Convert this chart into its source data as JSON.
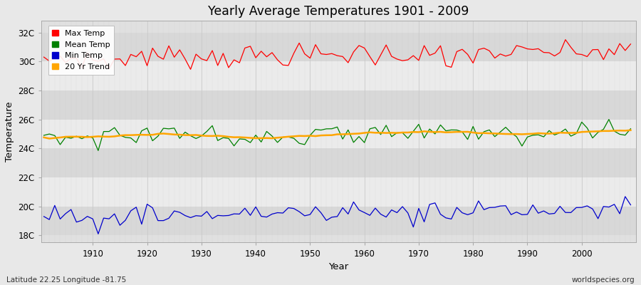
{
  "title": "Yearly Average Temperatures 1901 - 2009",
  "xlabel": "Year",
  "ylabel": "Temperature",
  "start_year": 1901,
  "end_year": 2009,
  "y_ticks": [
    18,
    20,
    22,
    24,
    26,
    28,
    30,
    32
  ],
  "y_tick_labels": [
    "18C",
    "20C",
    "22C",
    "24C",
    "26C",
    "28C",
    "30C",
    "32C"
  ],
  "ylim": [
    17.5,
    32.8
  ],
  "xlim": [
    1900.5,
    2010
  ],
  "bg_color": "#e8e8e8",
  "plot_bg_color": "#e0e0e0",
  "band_color_light": "#ebebeb",
  "band_color_dark": "#d8d8d8",
  "grid_v_color": "#cccccc",
  "max_color": "#ff0000",
  "mean_color": "#008000",
  "min_color": "#0000cc",
  "trend_color": "#ffa500",
  "trend_linewidth": 1.8,
  "line_linewidth": 0.9,
  "footnote_left": "Latitude 22.25 Longitude -81.75",
  "footnote_right": "worldspecies.org",
  "legend_labels": [
    "Max Temp",
    "Mean Temp",
    "Min Temp",
    "20 Yr Trend"
  ],
  "x_ticks": [
    1910,
    1920,
    1930,
    1940,
    1950,
    1960,
    1970,
    1980,
    1990,
    2000
  ]
}
